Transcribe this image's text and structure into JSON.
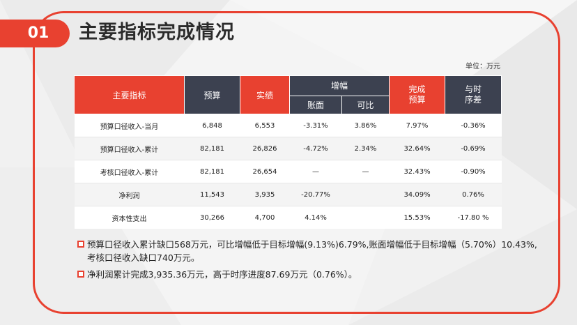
{
  "slide": {
    "number": "01",
    "title": "主要指标完成情况",
    "unit": "单位：万元",
    "accent_color": "#e84130",
    "header_dark_color": "#3c4150"
  },
  "table": {
    "headers": {
      "indicator": "主要指标",
      "budget": "预算",
      "actual": "实绩",
      "growth": "增幅",
      "growth_book": "账面",
      "growth_comparable": "可比",
      "complete_budget": "完成\n预算",
      "vs_timeline": "与时\n序差"
    },
    "rows": [
      {
        "indicator": "预算口径收入-当月",
        "budget": "6,848",
        "actual": "6,553",
        "book": "-3.31%",
        "comparable": "3.86%",
        "complete": "7.97%",
        "gap": "-0.36%"
      },
      {
        "indicator": "预算口径收入-累计",
        "budget": "82,181",
        "actual": "26,826",
        "book": "-4.72%",
        "comparable": "2.34%",
        "complete": "32.64%",
        "gap": "-0.69%"
      },
      {
        "indicator": "考核口径收入-累计",
        "budget": "82,181",
        "actual": "26,654",
        "book": "—",
        "comparable": "—",
        "complete": "32.43%",
        "gap": "-0.90%"
      },
      {
        "indicator": "净利润",
        "budget": "11,543",
        "actual": "3,935",
        "book": "-20.77%",
        "comparable": "",
        "complete": "34.09%",
        "gap": "0.76%"
      },
      {
        "indicator": "资本性支出",
        "budget": "30,266",
        "actual": "4,700",
        "book": "4.14%",
        "comparable": "",
        "complete": "15.53%",
        "gap": "-17.80 %"
      }
    ]
  },
  "notes": [
    {
      "line1": "预算口径收入累计缺口568万元，可比增幅低于目标增幅(9.13%)6.79%,账面增幅低于目标增幅（5.70%）10.43%,",
      "line2": "考核口径收入缺口740万元。"
    },
    {
      "line1": "净利润累计完成3,935.36万元，高于时序进度87.69万元（0.76%）。",
      "line2": ""
    }
  ]
}
